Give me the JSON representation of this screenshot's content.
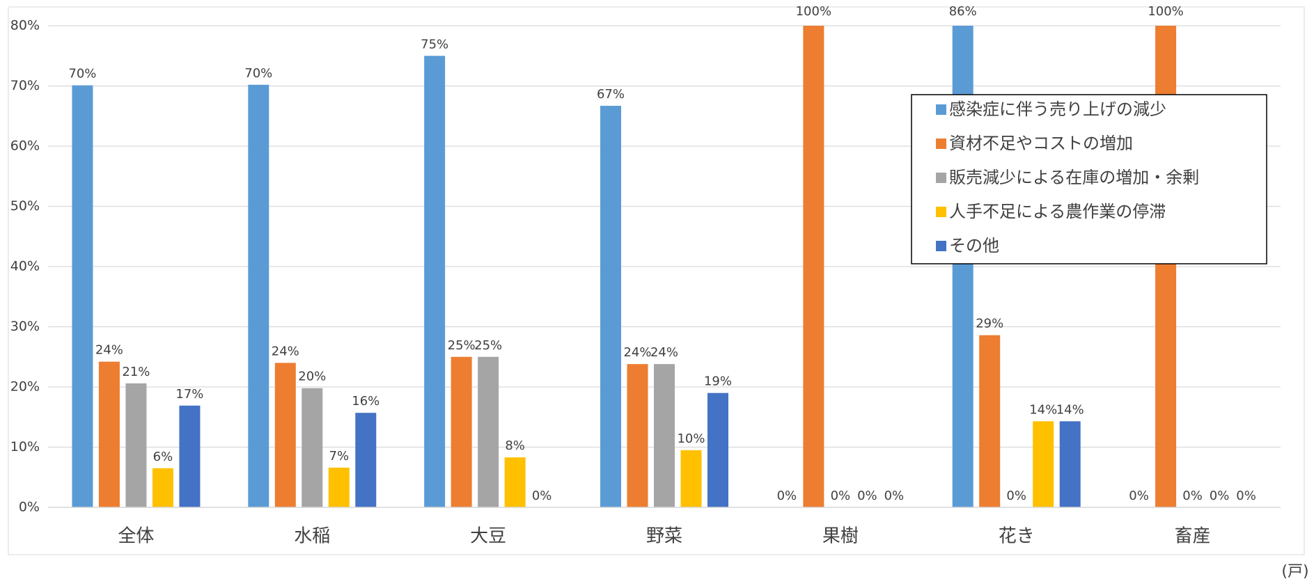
{
  "chart_data": {
    "type": "bar",
    "categories": [
      "全体",
      "水稲",
      "大豆",
      "野菜",
      "果樹",
      "花き",
      "畜産"
    ],
    "series": [
      {
        "name": "感染症に伴う売り上げの減少",
        "color": "#5b9bd5",
        "values": [
          70.1,
          70.2,
          75,
          66.7,
          0,
          85.7,
          0
        ],
        "value_labels": [
          "70%",
          "70%",
          "75%",
          "67%",
          "0%",
          "86%",
          "0%"
        ]
      },
      {
        "name": "資材不足やコストの増加",
        "color": "#ed7d31",
        "values": [
          24.2,
          24.0,
          25,
          23.8,
          100,
          28.6,
          100
        ],
        "value_labels": [
          "24%",
          "24%",
          "25%",
          "24%",
          "100%",
          "29%",
          "100%"
        ]
      },
      {
        "name": "販売減少による在庫の増加・余剰",
        "color": "#a5a5a5",
        "values": [
          20.6,
          19.8,
          25,
          23.8,
          0,
          0,
          0
        ],
        "value_labels": [
          "21%",
          "20%",
          "25%",
          "24%",
          "0%",
          "0%",
          "0%"
        ]
      },
      {
        "name": "人手不足による農作業の停滞",
        "color": "#ffc000",
        "values": [
          6.5,
          6.6,
          8.3,
          9.5,
          0,
          14.3,
          0
        ],
        "value_labels": [
          "6%",
          "7%",
          "8%",
          "10%",
          "0%",
          "14%",
          "0%"
        ]
      },
      {
        "name": "その他",
        "color": "#4472c4",
        "values": [
          16.9,
          15.7,
          0,
          19.0,
          0,
          14.3,
          0
        ],
        "value_labels": [
          "17%",
          "16%",
          "0%",
          "19%",
          "0%",
          "14%",
          "0%"
        ]
      }
    ],
    "ylim": [
      0,
      80
    ],
    "yticks": [
      {
        "value": 0,
        "label": "0%"
      },
      {
        "value": 10,
        "label": "10%"
      },
      {
        "value": 20,
        "label": "20%"
      },
      {
        "value": 30,
        "label": "30%"
      },
      {
        "value": 40,
        "label": "40%"
      },
      {
        "value": 50,
        "label": "50%"
      },
      {
        "value": 60,
        "label": "60%"
      },
      {
        "value": 70,
        "label": "70%"
      },
      {
        "value": 80,
        "label": "80%"
      }
    ],
    "grid": true,
    "legend": "upper right",
    "annotation": "(戸)"
  }
}
